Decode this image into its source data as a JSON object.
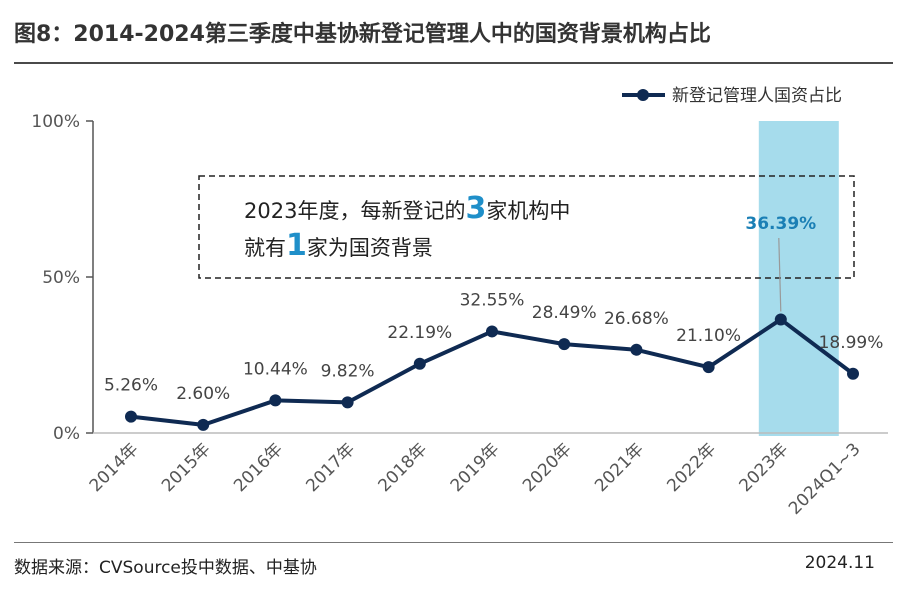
{
  "title": "图8：2014-2024第三季度中基协新登记管理人中的国资背景机构占比",
  "source": "数据来源：CVSource投中数据、中基协",
  "date": "2024.11",
  "note": {
    "line1_prefix": "2023年度，每新登记的",
    "line1_num": "3",
    "line1_suffix": "家机构中",
    "line2_prefix": "就有",
    "line2_num": "1",
    "line2_suffix": "家为国资背景"
  },
  "colors": {
    "line": "#0f2a52",
    "highlight": "#a6dcec",
    "highlight_label": "#1a7fb5"
  },
  "chart_data": {
    "type": "line",
    "categories": [
      "2014年",
      "2015年",
      "2016年",
      "2017年",
      "2018年",
      "2019年",
      "2020年",
      "2021年",
      "2022年",
      "2023年",
      "2024Q1~3"
    ],
    "series": [
      {
        "name": "新登记管理人国资占比",
        "values": [
          5.26,
          2.6,
          10.44,
          9.82,
          22.19,
          32.55,
          28.49,
          26.68,
          21.1,
          36.39,
          18.99
        ],
        "labels": [
          "5.26%",
          "2.60%",
          "10.44%",
          "9.82%",
          "22.19%",
          "32.55%",
          "28.49%",
          "26.68%",
          "21.10%",
          "36.39%",
          "18.99%"
        ]
      }
    ],
    "yticks": [
      "0%",
      "50%",
      "100%"
    ],
    "ylim": [
      0,
      100
    ],
    "highlight_category": "2023年",
    "legend_position": "top-right",
    "grid": false
  }
}
